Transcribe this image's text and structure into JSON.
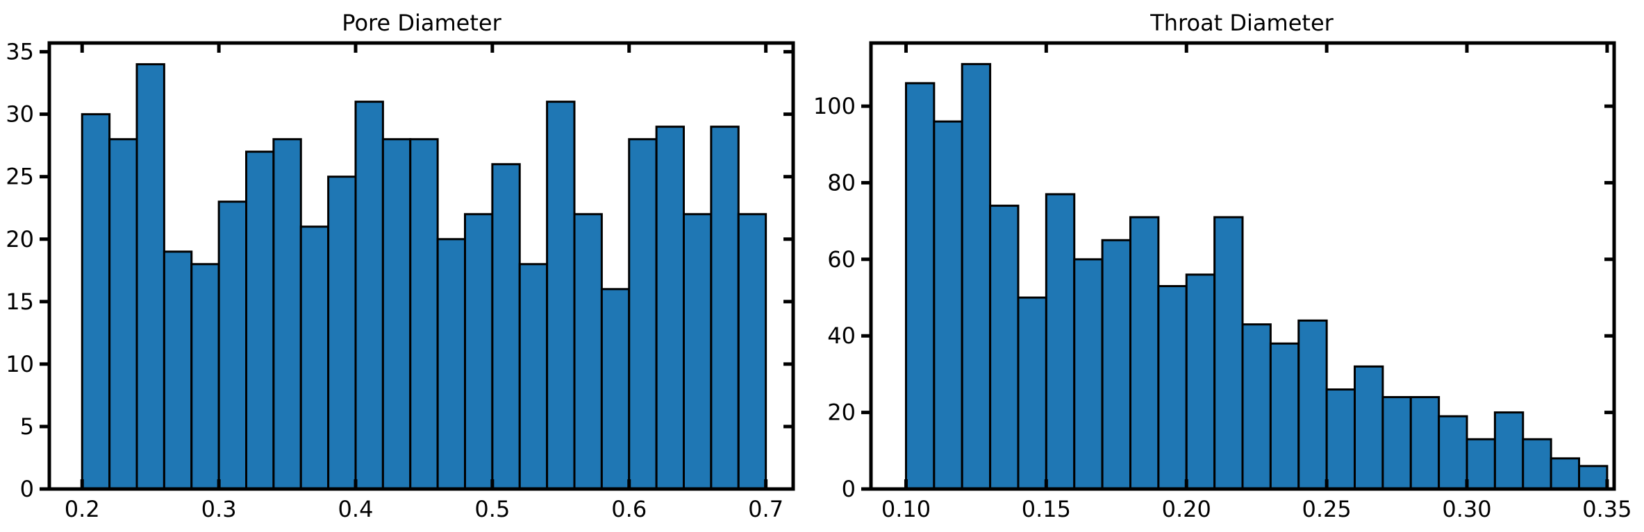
{
  "chart_data": [
    {
      "type": "bar",
      "title": "Pore Diameter",
      "xlabel": "",
      "ylabel": "",
      "bin_start": 0.2,
      "bin_width": 0.02,
      "values": [
        30,
        28,
        34,
        19,
        18,
        23,
        27,
        28,
        21,
        25,
        31,
        28,
        28,
        20,
        22,
        26,
        18,
        31,
        22,
        16,
        28,
        29,
        22,
        29,
        22
      ],
      "xlim": [
        0.176,
        0.72
      ],
      "ylim": [
        0,
        35.7
      ],
      "xticks": [
        0.2,
        0.3,
        0.4,
        0.5,
        0.6,
        0.7
      ],
      "xtick_labels": [
        "0.2",
        "0.3",
        "0.4",
        "0.5",
        "0.6",
        "0.7"
      ],
      "yticks": [
        0,
        5,
        10,
        15,
        20,
        25,
        30,
        35
      ],
      "ytick_labels": [
        "0",
        "5",
        "10",
        "15",
        "20",
        "25",
        "30",
        "35"
      ],
      "bar_color": "#1f77b4",
      "grid": false
    },
    {
      "type": "bar",
      "title": "Throat Diameter",
      "xlabel": "",
      "ylabel": "",
      "bin_start": 0.1,
      "bin_width": 0.01,
      "values": [
        106,
        96,
        111,
        74,
        50,
        77,
        60,
        65,
        71,
        53,
        56,
        71,
        43,
        38,
        44,
        26,
        32,
        24,
        24,
        19,
        13,
        20,
        13,
        8,
        6
      ],
      "xlim": [
        0.0875,
        0.3525
      ],
      "ylim": [
        0,
        116.5
      ],
      "xticks": [
        0.1,
        0.15,
        0.2,
        0.25,
        0.3,
        0.35
      ],
      "xtick_labels": [
        "0.10",
        "0.15",
        "0.20",
        "0.25",
        "0.30",
        "0.35"
      ],
      "yticks": [
        0,
        20,
        40,
        60,
        80,
        100
      ],
      "ytick_labels": [
        "0",
        "20",
        "40",
        "60",
        "80",
        "100"
      ],
      "bar_color": "#1f77b4",
      "grid": false
    }
  ]
}
